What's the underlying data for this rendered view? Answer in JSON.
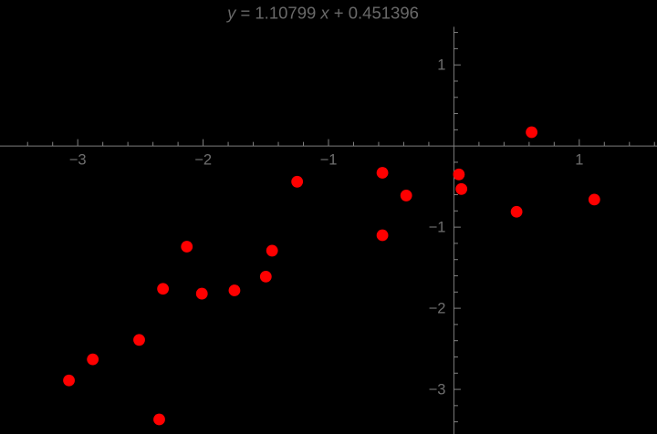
{
  "chart_data": {
    "type": "scatter",
    "title": "y = 1.10799 x + 0.451396",
    "title_parts": [
      {
        "text": "y",
        "italic": true
      },
      {
        "text": " = 1.10799 ",
        "italic": false
      },
      {
        "text": "x",
        "italic": true
      },
      {
        "text": " + 0.451396",
        "italic": false
      }
    ],
    "fit": {
      "slope": 1.10799,
      "intercept": 0.451396,
      "line_drawn": false
    },
    "points": [
      {
        "x": -3.07,
        "y": -2.89
      },
      {
        "x": -2.88,
        "y": -2.63
      },
      {
        "x": -2.51,
        "y": -2.39
      },
      {
        "x": -2.35,
        "y": -3.37
      },
      {
        "x": -2.32,
        "y": -1.76
      },
      {
        "x": -2.13,
        "y": -1.24
      },
      {
        "x": -2.01,
        "y": -1.82
      },
      {
        "x": -1.75,
        "y": -1.78
      },
      {
        "x": -1.5,
        "y": -1.61
      },
      {
        "x": -1.45,
        "y": -1.29
      },
      {
        "x": -1.25,
        "y": -0.44
      },
      {
        "x": -0.57,
        "y": -0.33
      },
      {
        "x": -0.57,
        "y": -1.1
      },
      {
        "x": -0.38,
        "y": -0.61
      },
      {
        "x": 0.04,
        "y": -0.35
      },
      {
        "x": 0.06,
        "y": -0.53
      },
      {
        "x": 0.5,
        "y": -0.81
      },
      {
        "x": 0.62,
        "y": 0.17
      },
      {
        "x": 1.12,
        "y": -0.66
      }
    ],
    "xlabel": "",
    "ylabel": "",
    "xlim": [
      -3.62,
      1.62
    ],
    "ylim": [
      -3.55,
      1.8
    ],
    "x_major_ticks": [
      {
        "value": -3,
        "label": "−3"
      },
      {
        "value": -2,
        "label": "−2"
      },
      {
        "value": -1,
        "label": "−1"
      },
      {
        "value": 1,
        "label": "1"
      }
    ],
    "y_major_ticks": [
      {
        "value": 1,
        "label": "1"
      },
      {
        "value": -1,
        "label": "−1"
      },
      {
        "value": -2,
        "label": "−2"
      },
      {
        "value": -3,
        "label": "−3"
      }
    ],
    "minor_tick_step": 0.2,
    "x_minor_range": [
      -3.4,
      1.6
    ],
    "y_minor_range": [
      -3.4,
      1.4
    ],
    "y_axis_top": 1.47,
    "grid": false,
    "legend": null,
    "marker": {
      "shape": "circle",
      "radius_px": 6.4
    },
    "colors": {
      "background": "#000000",
      "point": "#ff0000",
      "axis": "#7d7d7d",
      "tick": "#828282",
      "tick_label": "#6e6e6e",
      "title": "#696969"
    }
  }
}
